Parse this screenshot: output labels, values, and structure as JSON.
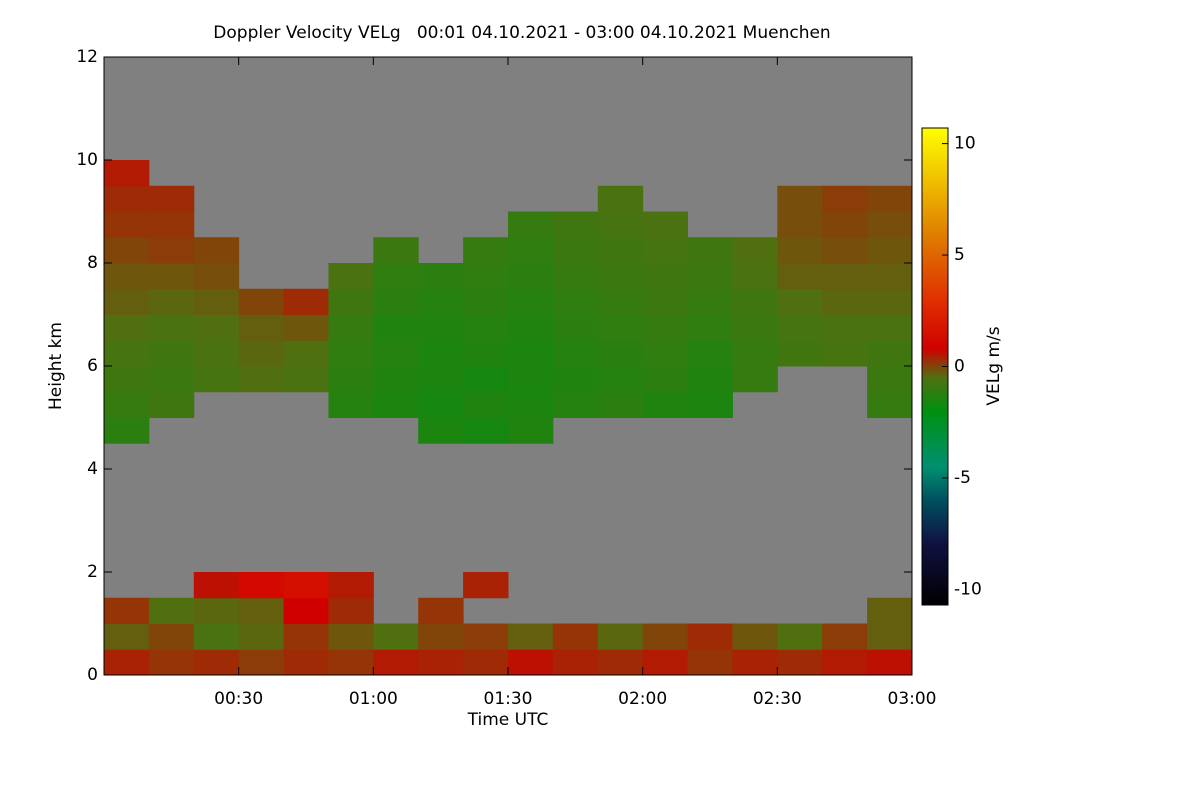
{
  "chart_data": {
    "type": "heatmap",
    "title": "Doppler Velocity VELg   00:01 04.10.2021 - 03:00 04.10.2021 Muenchen",
    "x_label": "Time UTC",
    "y_label": "Height km",
    "colorbar_label": "VELg m/s",
    "background": "#808080",
    "xlim": [
      0,
      180
    ],
    "ylim": [
      0,
      12
    ],
    "zlim": [
      -10.7,
      10.7
    ],
    "xticks": [
      {
        "value": 30,
        "label": "00:30"
      },
      {
        "value": 60,
        "label": "01:00"
      },
      {
        "value": 90,
        "label": "01:30"
      },
      {
        "value": 120,
        "label": "02:00"
      },
      {
        "value": 150,
        "label": "02:30"
      },
      {
        "value": 180,
        "label": "03:00"
      }
    ],
    "yticks": [
      0,
      2,
      4,
      6,
      8,
      10,
      12
    ],
    "zticks": [
      -10,
      -5,
      0,
      5,
      10
    ],
    "colorscale": [
      [
        -10.7,
        "#000000"
      ],
      [
        -8,
        "#101040"
      ],
      [
        -6,
        "#005060"
      ],
      [
        -4.5,
        "#009070"
      ],
      [
        -2,
        "#009010"
      ],
      [
        -0.5,
        "#507010"
      ],
      [
        0.8,
        "#d00000"
      ],
      [
        3,
        "#e03000"
      ],
      [
        6,
        "#e08000"
      ],
      [
        10.7,
        "#ffff00"
      ]
    ],
    "x_bins": [
      0,
      10,
      20,
      30,
      40,
      50,
      60,
      70,
      80,
      90,
      100,
      110,
      120,
      130,
      140,
      150,
      160,
      170,
      180
    ],
    "y_bins": [
      0,
      0.5,
      1,
      1.5,
      2,
      2.5,
      3,
      3.5,
      4,
      4.5,
      5,
      5.5,
      6,
      6.5,
      7,
      7.5,
      8,
      8.5,
      9,
      9.5,
      10,
      10.5,
      11,
      11.5,
      12
    ],
    "z": [
      [
        0.4,
        0.2,
        0.3,
        0.1,
        0.3,
        0.2,
        0.5,
        0.4,
        0.3,
        0.6,
        0.4,
        0.3,
        0.5,
        0.2,
        0.4,
        0.3,
        0.5,
        0.6
      ],
      [
        -0.3,
        0,
        -0.6,
        -0.4,
        0.2,
        -0.2,
        -0.5,
        0,
        0.1,
        -0.3,
        0.2,
        -0.4,
        0,
        0.3,
        -0.2,
        -0.5,
        0.1,
        -0.3
      ],
      [
        0.2,
        -0.5,
        -0.4,
        -0.3,
        0.8,
        0.3,
        null,
        0.2,
        null,
        null,
        null,
        null,
        null,
        null,
        null,
        null,
        null,
        -0.3
      ],
      [
        null,
        null,
        0.6,
        1.2,
        1.5,
        0.5,
        null,
        null,
        0.4,
        null,
        null,
        null,
        null,
        null,
        null,
        null,
        null,
        null
      ],
      [
        null,
        null,
        null,
        null,
        null,
        null,
        null,
        null,
        null,
        null,
        null,
        null,
        null,
        null,
        null,
        null,
        null,
        null
      ],
      [
        null,
        null,
        null,
        null,
        null,
        null,
        null,
        null,
        null,
        null,
        null,
        null,
        null,
        null,
        null,
        null,
        null,
        null
      ],
      [
        null,
        null,
        null,
        null,
        null,
        null,
        null,
        null,
        null,
        null,
        null,
        null,
        null,
        null,
        null,
        null,
        null,
        null
      ],
      [
        null,
        null,
        null,
        null,
        null,
        null,
        null,
        null,
        null,
        null,
        null,
        null,
        null,
        null,
        null,
        null,
        null,
        null
      ],
      [
        null,
        null,
        null,
        null,
        null,
        null,
        null,
        null,
        null,
        null,
        null,
        null,
        null,
        null,
        null,
        null,
        null,
        null
      ],
      [
        -1.2,
        null,
        null,
        null,
        null,
        null,
        null,
        -1.5,
        -1.6,
        -1.4,
        null,
        null,
        null,
        null,
        null,
        null,
        null,
        null
      ],
      [
        -1.0,
        -0.8,
        null,
        null,
        null,
        -1.3,
        -1.5,
        -1.6,
        -1.4,
        -1.5,
        -1.3,
        -1.2,
        -1.4,
        -1.5,
        null,
        null,
        null,
        -1.0
      ],
      [
        -0.8,
        -0.9,
        -0.7,
        -0.5,
        -0.6,
        -1.2,
        -1.4,
        -1.5,
        -1.6,
        -1.5,
        -1.4,
        -1.3,
        -1.2,
        -1.4,
        -1.0,
        null,
        null,
        -0.9
      ],
      [
        -0.7,
        -0.8,
        -0.6,
        -0.4,
        -0.5,
        -1.1,
        -1.3,
        -1.5,
        -1.4,
        -1.5,
        -1.3,
        -1.2,
        -1.1,
        -1.3,
        -1.0,
        -0.8,
        -0.7,
        -0.8
      ],
      [
        -0.5,
        -0.6,
        -0.5,
        -0.3,
        -0.2,
        -1.0,
        -1.4,
        -1.4,
        -1.3,
        -1.4,
        -1.2,
        -1.1,
        -1.0,
        -1.1,
        -0.9,
        -0.7,
        -0.6,
        -0.6
      ],
      [
        -0.3,
        -0.4,
        -0.3,
        0,
        0.3,
        -0.8,
        -1.2,
        -1.3,
        -1.2,
        -1.3,
        -1.1,
        -1.0,
        -0.9,
        -1.0,
        -0.8,
        -0.5,
        -0.4,
        -0.4
      ],
      [
        -0.2,
        -0.2,
        -0.1,
        null,
        null,
        -0.6,
        -1.1,
        -1.2,
        -1.1,
        -1.2,
        -1.0,
        -0.9,
        -0.8,
        -0.9,
        -0.6,
        -0.3,
        -0.3,
        -0.3
      ],
      [
        0,
        0.1,
        0,
        null,
        null,
        null,
        -0.9,
        null,
        -1.0,
        -1.1,
        -0.9,
        -0.8,
        -0.7,
        -0.8,
        -0.5,
        -0.2,
        -0.1,
        -0.2
      ],
      [
        0.2,
        0.2,
        null,
        null,
        null,
        null,
        null,
        null,
        null,
        -1.0,
        -0.8,
        -0.7,
        -0.6,
        null,
        null,
        -0.1,
        0,
        -0.1
      ],
      [
        0.3,
        0.3,
        null,
        null,
        null,
        null,
        null,
        null,
        null,
        null,
        null,
        -0.6,
        null,
        null,
        null,
        -0.1,
        0.1,
        0
      ],
      [
        0.5,
        null,
        null,
        null,
        null,
        null,
        null,
        null,
        null,
        null,
        null,
        null,
        null,
        null,
        null,
        null,
        null,
        null
      ],
      [
        null,
        null,
        null,
        null,
        null,
        null,
        null,
        null,
        null,
        null,
        null,
        null,
        null,
        null,
        null,
        null,
        null,
        null
      ],
      [
        null,
        null,
        null,
        null,
        null,
        null,
        null,
        null,
        null,
        null,
        null,
        null,
        null,
        null,
        null,
        null,
        null,
        null
      ],
      [
        null,
        null,
        null,
        null,
        null,
        null,
        null,
        null,
        null,
        null,
        null,
        null,
        null,
        null,
        null,
        null,
        null,
        null
      ],
      [
        null,
        null,
        null,
        null,
        null,
        null,
        null,
        null,
        null,
        null,
        null,
        null,
        null,
        null,
        null,
        null,
        null,
        null
      ]
    ]
  }
}
